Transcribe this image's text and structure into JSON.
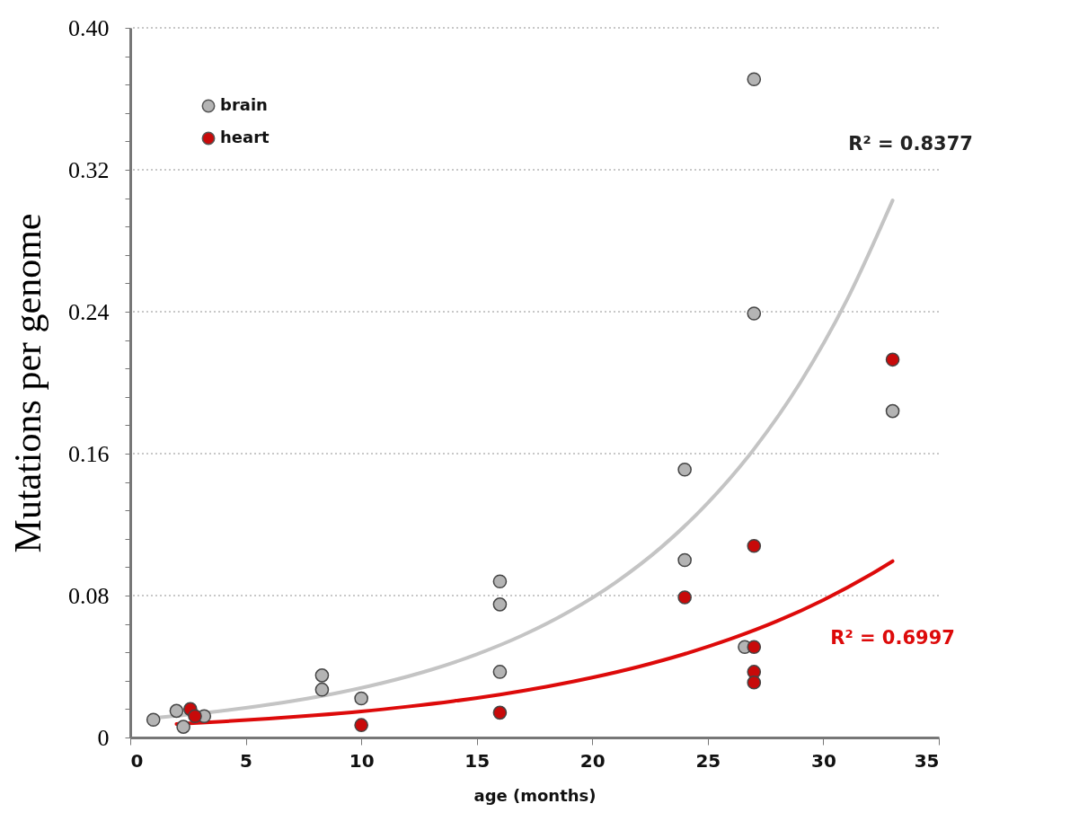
{
  "chart_data": {
    "type": "scatter",
    "xlabel": "age (months)",
    "ylabel": "Mutations per genome",
    "xlim": [
      0,
      35
    ],
    "xticks": [
      0,
      5,
      10,
      15,
      20,
      25,
      30,
      35
    ],
    "ylim": [
      0,
      0.4
    ],
    "yticks": [
      0,
      {
        "value": 0.016,
        "label": null
      },
      {
        "value": 0.032,
        "label": null
      },
      {
        "value": 0.048,
        "label": null
      },
      {
        "value": 0.064,
        "label": null
      },
      0.08,
      {
        "value": 0.096,
        "label": null
      },
      {
        "value": 0.112,
        "label": null
      },
      {
        "value": 0.128,
        "label": null
      },
      {
        "value": 0.144,
        "label": null
      },
      0.16,
      {
        "value": 0.176,
        "label": null
      },
      {
        "value": 0.192,
        "label": null
      },
      {
        "value": 0.208,
        "label": null
      },
      {
        "value": 0.224,
        "label": null
      },
      0.24,
      {
        "value": 0.256,
        "label": null
      },
      {
        "value": 0.272,
        "label": null
      },
      {
        "value": 0.288,
        "label": null
      },
      {
        "value": 0.304,
        "label": null
      },
      0.32,
      {
        "value": 0.336,
        "label": null
      },
      {
        "value": 0.352,
        "label": null
      },
      {
        "value": 0.368,
        "label": null
      },
      {
        "value": 0.384,
        "label": null
      },
      {
        "value": 0.4,
        "label": "0.40"
      }
    ],
    "grid": "y",
    "legend": "top left",
    "series": [
      {
        "type": "line",
        "color": "#c4c4c4",
        "line_style": "solid",
        "x": [
          1,
          3,
          5,
          7,
          9,
          11,
          13,
          15,
          17,
          19,
          21,
          23,
          25,
          27,
          29,
          31,
          33
        ],
        "values": [
          0.011,
          0.0135,
          0.0167,
          0.0205,
          0.0252,
          0.031,
          0.0381,
          0.0469,
          0.0577,
          0.071,
          0.0873,
          0.1074,
          0.1322,
          0.1626,
          0.2,
          0.2461,
          0.3027
        ]
      },
      {
        "type": "line",
        "color": "#dd0a0a",
        "line_style": "solid",
        "x": [
          2,
          4,
          6,
          8,
          10,
          12,
          14,
          16,
          18,
          20,
          22,
          24,
          26,
          28,
          30,
          32,
          33
        ],
        "values": [
          0.0076,
          0.009,
          0.0106,
          0.0125,
          0.0147,
          0.0174,
          0.0205,
          0.0242,
          0.0286,
          0.0338,
          0.0399,
          0.0471,
          0.0556,
          0.0656,
          0.0775,
          0.0915,
          0.0994
        ]
      },
      {
        "name": "brain",
        "type": "scatter",
        "marker": "circle",
        "color": "#b4b4b4",
        "x": [
          1,
          2,
          2.3,
          3.2,
          8.3,
          8.3,
          10,
          16,
          16,
          16,
          24,
          24,
          26.6,
          27,
          27,
          33
        ],
        "values": [
          0.01,
          0.015,
          0.006,
          0.012,
          0.035,
          0.027,
          0.022,
          0.088,
          0.075,
          0.037,
          0.151,
          0.1,
          0.051,
          0.371,
          0.239,
          0.184
        ]
      },
      {
        "name": "heart",
        "type": "scatter",
        "marker": "circle",
        "color": "#c80a0a",
        "x": [
          2.6,
          2.8,
          10,
          16,
          24,
          27,
          27,
          27,
          27,
          33
        ],
        "values": [
          0.016,
          0.012,
          0.007,
          0.014,
          0.079,
          0.108,
          0.051,
          0.037,
          0.031,
          0.213
        ]
      }
    ],
    "annotations": [
      "R² = 0.8377",
      "R² = 0.6997"
    ]
  }
}
